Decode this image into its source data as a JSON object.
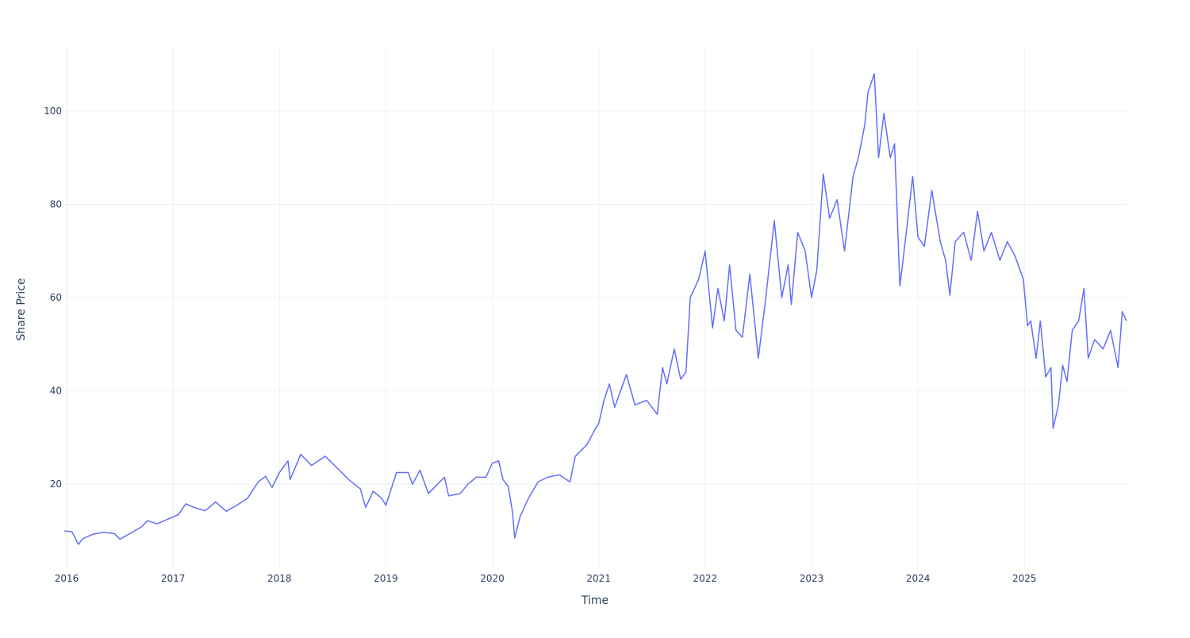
{
  "chart_data": {
    "type": "line",
    "x_label": "Time",
    "y_label": "Share Price",
    "xlim": [
      2015.97,
      2025.96
    ],
    "xticks": [
      2016,
      2017,
      2018,
      2019,
      2020,
      2021,
      2022,
      2023,
      2024,
      2025
    ],
    "ylim": [
      2,
      113.6
    ],
    "yticks": [
      20,
      40,
      60,
      80,
      100
    ],
    "grid": true,
    "x": [
      2015.98,
      2016.05,
      2016.08,
      2016.11,
      2016.15,
      2016.25,
      2016.35,
      2016.45,
      2016.5,
      2016.6,
      2016.7,
      2016.76,
      2016.85,
      2016.95,
      2017.05,
      2017.12,
      2017.2,
      2017.3,
      2017.4,
      2017.5,
      2017.6,
      2017.7,
      2017.8,
      2017.87,
      2017.93,
      2018.0,
      2018.08,
      2018.1,
      2018.2,
      2018.3,
      2018.43,
      2018.54,
      2018.65,
      2018.76,
      2018.81,
      2018.88,
      2018.96,
      2019.0,
      2019.1,
      2019.21,
      2019.25,
      2019.32,
      2019.4,
      2019.55,
      2019.59,
      2019.7,
      2019.77,
      2019.85,
      2019.94,
      2020.0,
      2020.06,
      2020.1,
      2020.15,
      2020.19,
      2020.21,
      2020.26,
      2020.34,
      2020.43,
      2020.52,
      2020.63,
      2020.73,
      2020.78,
      2020.89,
      2020.97,
      2021.0,
      2021.05,
      2021.1,
      2021.15,
      2021.26,
      2021.34,
      2021.45,
      2021.55,
      2021.6,
      2021.64,
      2021.71,
      2021.77,
      2021.82,
      2021.86,
      2021.94,
      2022.0,
      2022.07,
      2022.12,
      2022.18,
      2022.23,
      2022.29,
      2022.35,
      2022.42,
      2022.5,
      2022.57,
      2022.65,
      2022.72,
      2022.78,
      2022.81,
      2022.87,
      2022.94,
      2023.0,
      2023.05,
      2023.11,
      2023.17,
      2023.24,
      2023.31,
      2023.39,
      2023.44,
      2023.5,
      2023.53,
      2023.59,
      2023.63,
      2023.68,
      2023.74,
      2023.78,
      2023.83,
      2023.87,
      2023.95,
      2024.0,
      2024.06,
      2024.13,
      2024.21,
      2024.26,
      2024.3,
      2024.35,
      2024.43,
      2024.5,
      2024.56,
      2024.62,
      2024.69,
      2024.77,
      2024.84,
      2024.91,
      2024.99,
      2025.03,
      2025.06,
      2025.11,
      2025.15,
      2025.2,
      2025.25,
      2025.27,
      2025.32,
      2025.36,
      2025.4,
      2025.45,
      2025.51,
      2025.56,
      2025.6,
      2025.66,
      2025.74,
      2025.81,
      2025.88,
      2025.92,
      2025.96
    ],
    "series": [
      {
        "name": "Share Price",
        "color": "#636efa",
        "values": [
          10,
          9.8,
          8.5,
          7.1,
          8.3,
          9.3,
          9.7,
          9.4,
          8.2,
          9.5,
          10.8,
          12.2,
          11.5,
          12.5,
          13.5,
          15.8,
          15,
          14.3,
          16.2,
          14.2,
          15.5,
          17,
          20.5,
          21.7,
          19.3,
          22.5,
          25,
          21,
          26.4,
          24,
          26,
          23.5,
          21,
          19,
          15,
          18.5,
          17,
          15.5,
          22.5,
          22.5,
          20,
          23,
          18,
          21.5,
          17.5,
          18,
          20,
          21.5,
          21.5,
          24.5,
          25,
          21,
          19.5,
          14,
          8.5,
          13,
          17,
          20.5,
          21.5,
          22,
          20.5,
          26,
          28.5,
          32,
          33,
          38,
          41.5,
          36.5,
          43.5,
          37,
          38,
          35,
          45,
          41.5,
          49,
          42.5,
          44,
          60,
          64,
          70,
          53.5,
          62,
          55,
          67,
          53,
          51.5,
          65,
          47,
          60,
          76.5,
          60,
          67,
          58.5,
          74,
          70,
          60,
          66,
          86.5,
          77,
          81,
          70,
          86,
          90,
          97,
          104,
          108,
          90,
          99.5,
          90,
          93,
          62.5,
          70,
          86,
          73,
          71,
          83,
          72,
          68,
          60.5,
          72,
          74,
          68,
          78.5,
          70,
          74,
          68,
          72,
          69,
          64,
          54,
          55,
          47,
          55,
          43,
          45,
          32,
          37,
          45.5,
          42,
          53,
          55,
          62,
          47,
          51,
          49,
          53,
          45,
          57,
          55
        ]
      }
    ]
  }
}
